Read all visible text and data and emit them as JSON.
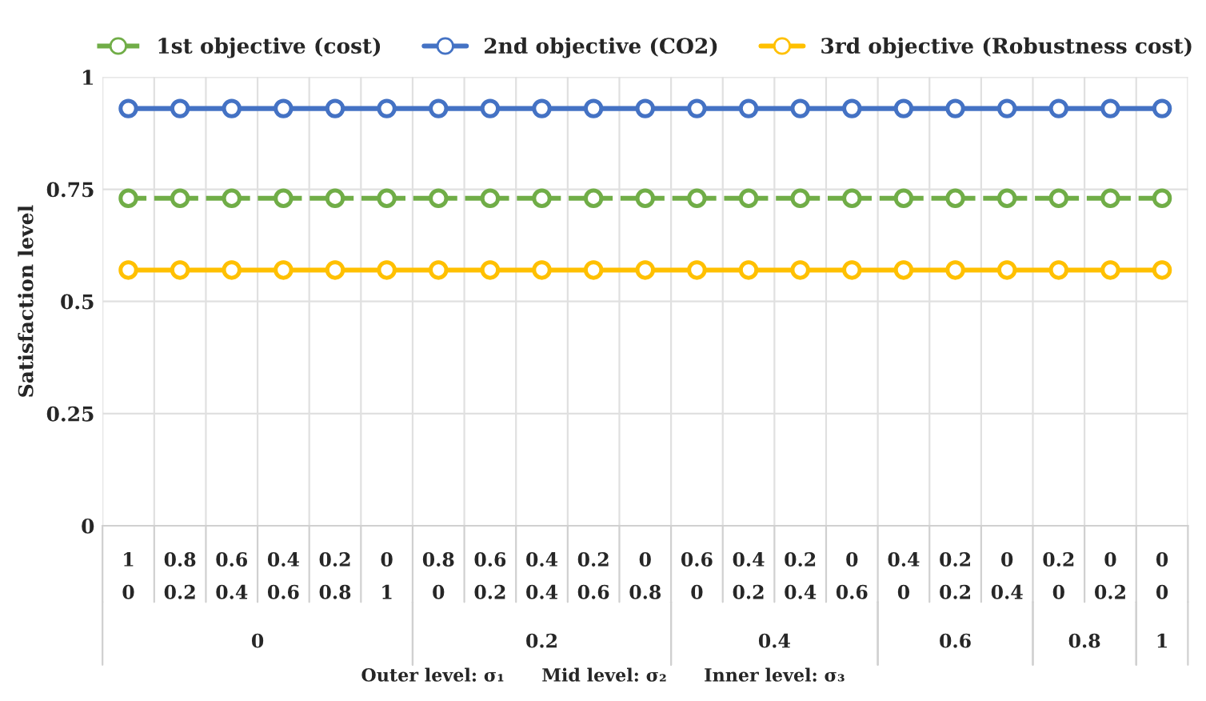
{
  "chart_data": {
    "type": "line",
    "ylabel": "Satisfaction level",
    "categories": [
      "1\n0",
      "0.8\n0.2",
      "0.6\n0.4",
      "0.4\n0.6",
      "0.2\n0.8",
      "0\n1",
      "0.8\n0",
      "0.6\n0.2",
      "0.4\n0.4",
      "0.2\n0.6",
      "0\n0.8",
      "0.6\n0",
      "0.4\n0.2",
      "0.2\n0.4",
      "0\n0.6",
      "0.4\n0",
      "0.2\n0.2",
      "0\n0.4",
      "0.2\n0",
      "0\n0.2",
      "0\n0"
    ],
    "series": [
      {
        "name": "1st objective (cost)",
        "color": "#70ad47",
        "line_style": "dashed",
        "values": [
          0.73,
          0.73,
          0.73,
          0.73,
          0.73,
          0.73,
          0.73,
          0.73,
          0.73,
          0.73,
          0.73,
          0.73,
          0.73,
          0.73,
          0.73,
          0.73,
          0.73,
          0.73,
          0.73,
          0.73,
          0.73
        ]
      },
      {
        "name": "2nd objective (CO2)",
        "color": "#4472c4",
        "line_style": "solid",
        "values": [
          0.93,
          0.93,
          0.93,
          0.93,
          0.93,
          0.93,
          0.93,
          0.93,
          0.93,
          0.93,
          0.93,
          0.93,
          0.93,
          0.93,
          0.93,
          0.93,
          0.93,
          0.93,
          0.93,
          0.93,
          0.93
        ]
      },
      {
        "name": "3rd objective (Robustness cost)",
        "color": "#ffc000",
        "line_style": "solid",
        "values": [
          0.57,
          0.57,
          0.57,
          0.57,
          0.57,
          0.57,
          0.57,
          0.57,
          0.57,
          0.57,
          0.57,
          0.57,
          0.57,
          0.57,
          0.57,
          0.57,
          0.57,
          0.57,
          0.57,
          0.57,
          0.57
        ]
      }
    ],
    "ylim": [
      0,
      1
    ],
    "yticks": [
      0,
      0.25,
      0.5,
      0.75,
      1
    ],
    "grid": true,
    "legend": "top",
    "marker": "circle",
    "annotations": [
      "0",
      "0.2",
      "0.4",
      "0.6",
      "0.8",
      "1",
      "Outer level: σ₁      Mid level: σ₂      Inner level: σ₃"
    ]
  }
}
